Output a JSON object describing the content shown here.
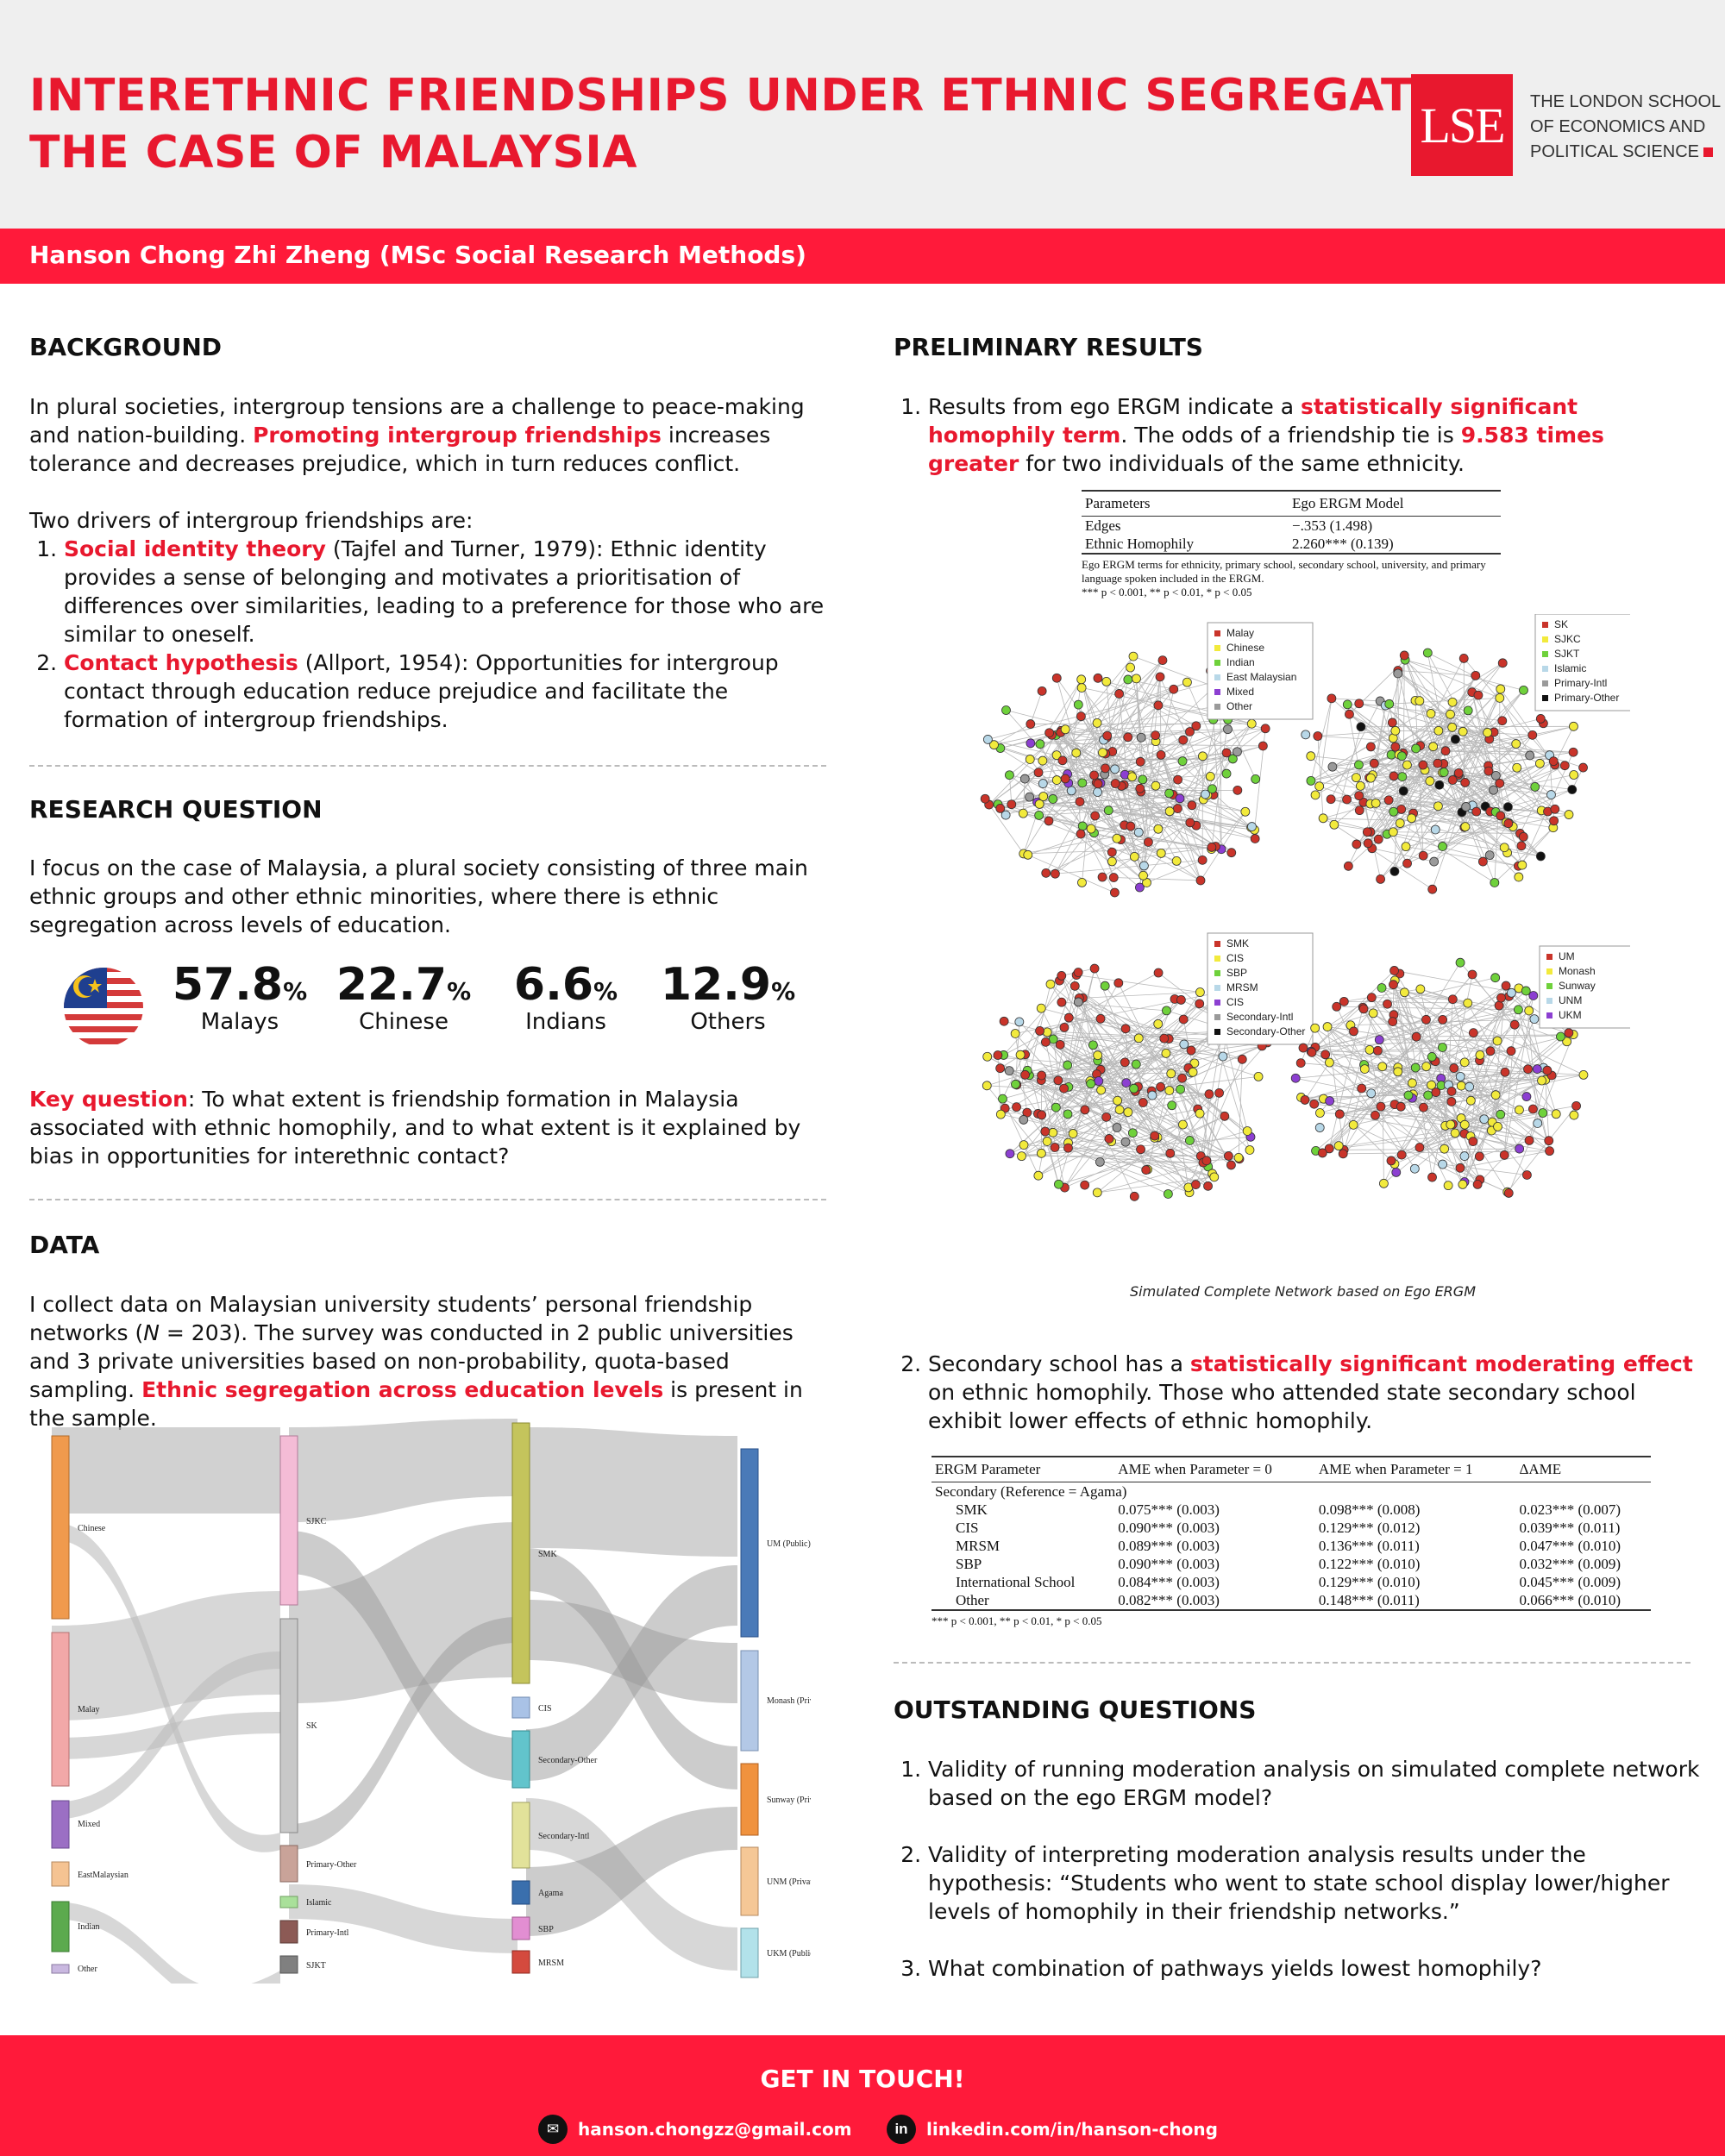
{
  "header": {
    "title_line1": "INTERETHNIC FRIENDSHIPS UNDER ETHNIC SEGREGATION",
    "title_line2": "THE CASE OF MALAYSIA",
    "logo_mark": "LSE",
    "logo_line1": "THE LONDON SCHOOL",
    "logo_line2": "OF ECONOMICS AND",
    "logo_line3": "POLITICAL SCIENCE",
    "author": "Hanson Chong Zhi Zheng (MSc Social Research Methods)"
  },
  "background": {
    "heading": "BACKGROUND",
    "p1_a": "In plural societies, intergroup tensions are a challenge to peace-making and nation-building. ",
    "p1_b": "Promoting intergroup friendships",
    "p1_c": " increases tolerance and decreases prejudice, which in turn reduces conflict.",
    "p2": "Two drivers of intergroup friendships are:",
    "item1_a": "Social identity theory",
    "item1_b": " (Tajfel and Turner, 1979): Ethnic identity provides a sense of belonging and motivates a prioritisation of differences over similarities, leading to a preference for those who are similar to oneself.",
    "item2_a": "Contact hypothesis",
    "item2_b": " (Allport, 1954): Opportunities for intergroup contact through education reduce prejudice and facilitate the formation of intergroup friendships."
  },
  "research": {
    "heading": "RESEARCH QUESTION",
    "p1": "I focus on the case of Malaysia, a plural society consisting of three main ethnic groups and other ethnic minorities, where there is ethnic segregation across levels of education.",
    "stats": [
      {
        "num": "57.8",
        "pct": "%",
        "label": "Malays"
      },
      {
        "num": "22.7",
        "pct": "%",
        "label": "Chinese"
      },
      {
        "num": "6.6",
        "pct": "%",
        "label": "Indians"
      },
      {
        "num": "12.9",
        "pct": "%",
        "label": "Others"
      }
    ],
    "kq_a": "Key question",
    "kq_b": ": To what extent is friendship formation in Malaysia associated with ethnic homophily, and to what extent is it explained by bias in opportunities for interethnic contact?"
  },
  "data_section": {
    "heading": "DATA",
    "p1_a": "I collect data on Malaysian university students’ personal friendship networks (",
    "p1_n": "N",
    "p1_b": " = 203). The survey was conducted in 2 public universities and 3 private universities based on non-probability, quota-based sampling. ",
    "p1_c": "Ethnic segregation across education levels",
    "p1_d": " is present in the sample."
  },
  "sankey": {
    "col1": [
      "Chinese",
      "Malay",
      "Mixed",
      "EastMalaysian",
      "Indian",
      "Other"
    ],
    "col2": [
      "SJKC",
      "SK",
      "Primary-Other",
      "Islamic",
      "Primary-Intl",
      "SJKT"
    ],
    "col3": [
      "SMK",
      "CIS",
      "Secondary-Other",
      "Secondary-Intl",
      "Agama",
      "SBP",
      "MRSM"
    ],
    "col4": [
      "UM (Public)",
      "Monash (Private)",
      "Sunway (Private)",
      "UNM (Private)",
      "UKM (Public)"
    ]
  },
  "results": {
    "heading": "PRELIMINARY RESULTS",
    "r1_a": "Results from ego ERGM indicate a ",
    "r1_b": "statistically significant homophily term",
    "r1_c": ".  The odds of a friendship tie is ",
    "r1_d": "9.583 times greater",
    "r1_e": " for two individuals of the same ethnicity.",
    "t1": {
      "h1": "Parameters",
      "h2": "Ego ERGM Model",
      "rows": [
        [
          "Edges",
          "−.353 (1.498)"
        ],
        [
          "Ethnic Homophily",
          "2.260*** (0.139)"
        ]
      ],
      "note1": "Ego ERGM terms for ethnicity, primary school, secondary school, university, and primary language spoken included in the ERGM.",
      "note2": "*** p < 0.001,  ** p < 0.01,  * p < 0.05"
    },
    "legends": {
      "ethnicity": [
        {
          "label": "Malay",
          "color": "#c9342a"
        },
        {
          "label": "Chinese",
          "color": "#f2ea3c"
        },
        {
          "label": "Indian",
          "color": "#6fd13b"
        },
        {
          "label": "East Malaysian",
          "color": "#b8d8e8"
        },
        {
          "label": "Mixed",
          "color": "#8c3fd1"
        },
        {
          "label": "Other",
          "color": "#9a9a9a"
        }
      ],
      "primary": [
        {
          "label": "SK",
          "color": "#c9342a"
        },
        {
          "label": "SJKC",
          "color": "#f2ea3c"
        },
        {
          "label": "SJKT",
          "color": "#6fd13b"
        },
        {
          "label": "Islamic",
          "color": "#b8d8e8"
        },
        {
          "label": "Primary-Intl",
          "color": "#9a9a9a"
        },
        {
          "label": "Primary-Other",
          "color": "#111111"
        }
      ],
      "secondary": [
        {
          "label": "SMK",
          "color": "#c9342a"
        },
        {
          "label": "CIS",
          "color": "#f2ea3c"
        },
        {
          "label": "SBP",
          "color": "#6fd13b"
        },
        {
          "label": "MRSM",
          "color": "#b8d8e8"
        },
        {
          "label": "CIS",
          "color": "#8c3fd1"
        },
        {
          "label": "Secondary-Intl",
          "color": "#9a9a9a"
        },
        {
          "label": "Secondary-Other",
          "color": "#111111"
        }
      ],
      "university": [
        {
          "label": "UM",
          "color": "#c9342a"
        },
        {
          "label": "Monash",
          "color": "#f2ea3c"
        },
        {
          "label": "Sunway",
          "color": "#6fd13b"
        },
        {
          "label": "UNM",
          "color": "#b8d8e8"
        },
        {
          "label": "UKM",
          "color": "#8c3fd1"
        }
      ]
    },
    "network_caption": "Simulated Complete Network based on Ego ERGM",
    "r2_a": "Secondary school has a ",
    "r2_b": "statistically significant moderating effect",
    "r2_c": " on ethnic homophily. Those who attended state secondary school exhibit lower effects of ethnic homophily.",
    "t2": {
      "h1": "ERGM Parameter",
      "h2": "AME when Parameter = 0",
      "h3": "AME when Parameter = 1",
      "h4": "ΔAME",
      "group": "Secondary (Reference = Agama)",
      "rows": [
        [
          "SMK",
          "0.075*** (0.003)",
          "0.098*** (0.008)",
          "0.023*** (0.007)"
        ],
        [
          "CIS",
          "0.090*** (0.003)",
          "0.129*** (0.012)",
          "0.039*** (0.011)"
        ],
        [
          "MRSM",
          "0.089*** (0.003)",
          "0.136*** (0.011)",
          "0.047*** (0.010)"
        ],
        [
          "SBP",
          "0.090*** (0.003)",
          "0.122*** (0.010)",
          "0.032*** (0.009)"
        ],
        [
          "International School",
          "0.084*** (0.003)",
          "0.129*** (0.010)",
          "0.045*** (0.009)"
        ],
        [
          "Other",
          "0.082*** (0.003)",
          "0.148*** (0.011)",
          "0.066*** (0.010)"
        ]
      ],
      "note": "*** p < 0.001,  ** p < 0.01,  * p < 0.05"
    }
  },
  "outstanding": {
    "heading": "OUTSTANDING QUESTIONS",
    "q1": "Validity of running moderation analysis on simulated complete network based on the ego ERGM model?",
    "q2": " Validity of interpreting moderation analysis results under the hypothesis: “Students who went to state school display lower/higher levels of homophily in their friendship networks.”",
    "q3": "What combination of pathways yields lowest homophily?"
  },
  "footer": {
    "heading": "GET IN TOUCH!",
    "email": "hanson.chongzz@gmail.com",
    "linkedin": "linkedin.com/in/hanson-chong",
    "email_icon": "email-icon",
    "linkedin_icon": "linkedin-icon"
  }
}
